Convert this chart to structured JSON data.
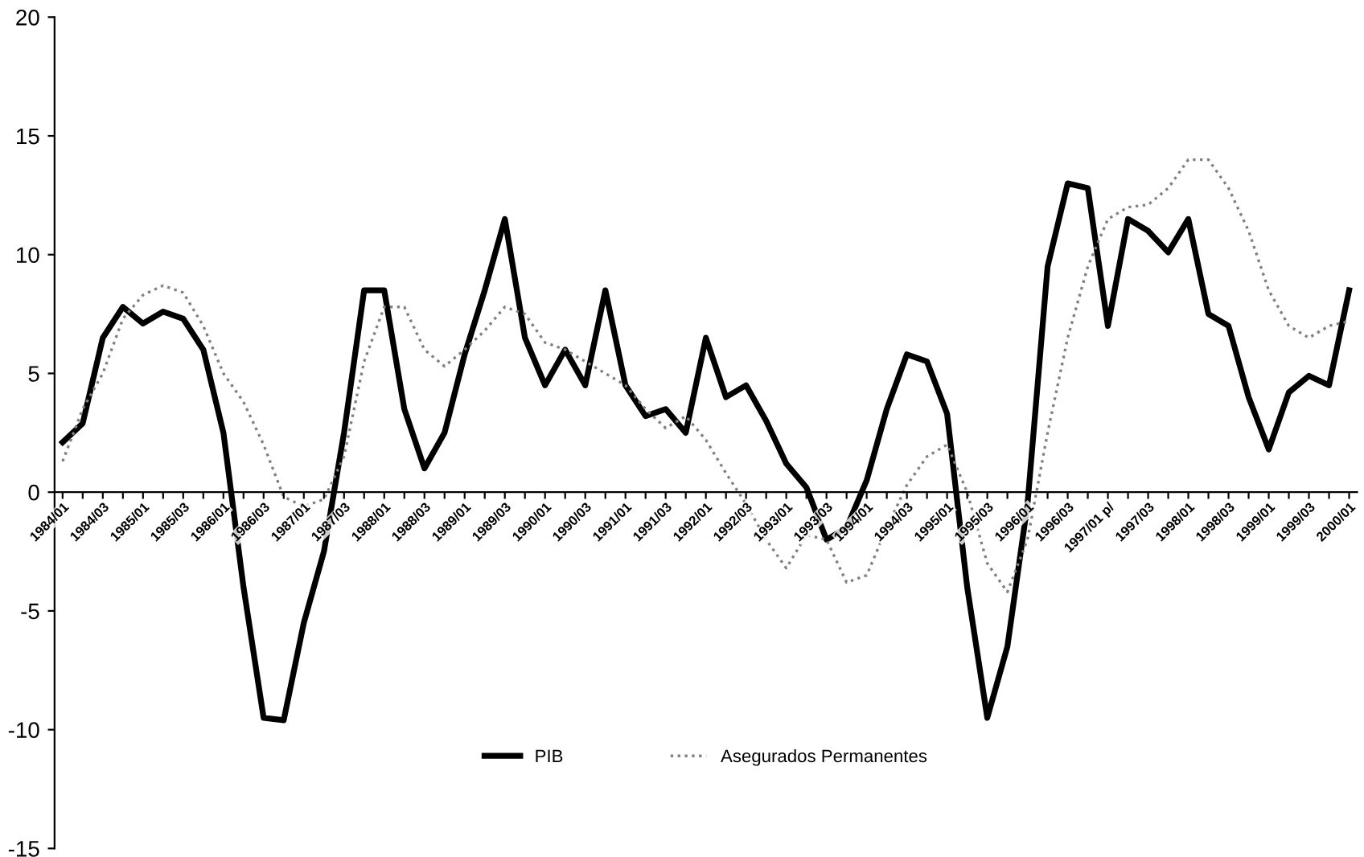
{
  "chart_data": {
    "type": "line",
    "categories": [
      "1984/01",
      null,
      "1984/03",
      null,
      "1985/01",
      null,
      "1985/03",
      null,
      "1986/01",
      null,
      "1986/03",
      null,
      "1987/01",
      null,
      "1987/03",
      null,
      "1988/01",
      null,
      "1988/03",
      null,
      "1989/01",
      null,
      "1989/03",
      null,
      "1990/01",
      null,
      "1990/03",
      null,
      "1991/01",
      null,
      "1991/03",
      null,
      "1992/01",
      null,
      "1992/03",
      null,
      "1993/01",
      null,
      "1993/03",
      null,
      "1994/01",
      null,
      "1994/03",
      null,
      "1995/01",
      null,
      "1995/03",
      null,
      "1996/01",
      null,
      "1996/03",
      null,
      "1997/01 p/",
      null,
      "1997/03",
      null,
      "1998/01",
      null,
      "1998/03",
      null,
      "1999/01",
      null,
      "1999/03",
      null,
      "2000/01"
    ],
    "series": [
      {
        "name": "PIB",
        "color": "#000000",
        "line_style": "solid",
        "values": [
          2.1,
          2.9,
          6.5,
          7.8,
          7.1,
          7.6,
          7.3,
          6.0,
          2.5,
          -4,
          -9.5,
          -9.6,
          -5.5,
          -2.5,
          2.5,
          8.5,
          8.5,
          3.5,
          1.0,
          2.5,
          5.8,
          8.5,
          11.5,
          6.5,
          4.5,
          6.0,
          4.5,
          8.5,
          4.5,
          3.2,
          3.5,
          2.5,
          6.5,
          4.0,
          4.5,
          3.0,
          1.2,
          0.2,
          -2.0,
          -1.5,
          0.5,
          3.5,
          5.8,
          5.5,
          3.3,
          -4,
          -9.5,
          -6.5,
          -0.5,
          9.5,
          13.0,
          12.8,
          7.0,
          11.5,
          11.0,
          10.1,
          11.5,
          7.5,
          7.0,
          4.0,
          1.8,
          4.2,
          4.9,
          4.5,
          8.5
        ]
      },
      {
        "name": "Asegurados Permanentes",
        "color": "#808080",
        "line_style": "dotted",
        "values": [
          1.3,
          3.5,
          5.0,
          7.3,
          8.3,
          8.7,
          8.4,
          7.0,
          5.0,
          3.8,
          2.0,
          -0.2,
          -0.6,
          -0.3,
          1.5,
          5.5,
          7.8,
          7.8,
          6.0,
          5.3,
          6.0,
          6.8,
          7.8,
          7.5,
          6.3,
          6.0,
          5.5,
          5.0,
          4.5,
          3.5,
          2.7,
          3.2,
          2.2,
          0.8,
          -0.5,
          -2.0,
          -3.2,
          -1.8,
          -2.0,
          -3.8,
          -3.5,
          -1.5,
          0.3,
          1.5,
          2.0,
          0,
          -3.0,
          -4.2,
          -2.0,
          2.5,
          6.5,
          9.5,
          11.5,
          12.0,
          12.1,
          12.8,
          14.0,
          14.0,
          12.8,
          11.0,
          8.5,
          7.0,
          6.5,
          7.0,
          7.2
        ]
      }
    ],
    "ylim": [
      -15,
      20
    ],
    "yticks": [
      -15,
      -10,
      -5,
      0,
      5,
      10,
      15,
      20
    ],
    "grid": false,
    "legend": "bottom",
    "marker": "none"
  }
}
